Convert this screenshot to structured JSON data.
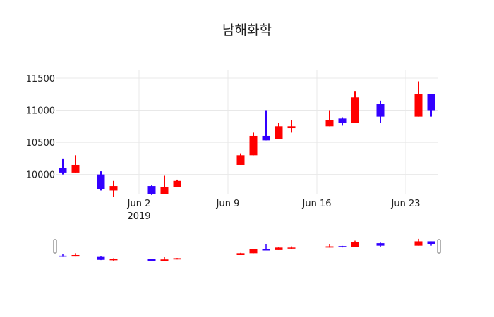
{
  "chart_data": {
    "type": "candlestick",
    "title": "남해화학",
    "xlabel": "",
    "ylabel": "",
    "grid": true,
    "range_slider": true,
    "ylim": [
      9700,
      11620
    ],
    "y_ticks": [
      10000,
      10500,
      11000,
      11500
    ],
    "x_ticks": [
      {
        "date": "2019-06-02",
        "label": "Jun 2",
        "sublabel": "2019"
      },
      {
        "date": "2019-06-09",
        "label": "Jun 9",
        "sublabel": ""
      },
      {
        "date": "2019-06-16",
        "label": "Jun 16",
        "sublabel": ""
      },
      {
        "date": "2019-06-23",
        "label": "Jun 23",
        "sublabel": ""
      }
    ],
    "increasing_color": "#ff0000",
    "decreasing_color": "#3300ff",
    "candles": [
      {
        "date": "2019-05-27",
        "open": 10100,
        "high": 10250,
        "low": 10000,
        "close": 10030
      },
      {
        "date": "2019-05-28",
        "open": 10030,
        "high": 10300,
        "low": 10030,
        "close": 10150
      },
      {
        "date": "2019-05-30",
        "open": 10000,
        "high": 10050,
        "low": 9750,
        "close": 9770
      },
      {
        "date": "2019-05-31",
        "open": 9750,
        "high": 9900,
        "low": 9650,
        "close": 9820
      },
      {
        "date": "2019-06-03",
        "open": 9820,
        "high": 9830,
        "low": 9680,
        "close": 9700
      },
      {
        "date": "2019-06-04",
        "open": 9700,
        "high": 9980,
        "low": 9700,
        "close": 9800
      },
      {
        "date": "2019-06-05",
        "open": 9800,
        "high": 9920,
        "low": 9800,
        "close": 9900
      },
      {
        "date": "2019-06-10",
        "open": 10150,
        "high": 10330,
        "low": 10150,
        "close": 10300
      },
      {
        "date": "2019-06-11",
        "open": 10300,
        "high": 10650,
        "low": 10300,
        "close": 10600
      },
      {
        "date": "2019-06-12",
        "open": 10600,
        "high": 11000,
        "low": 10530,
        "close": 10530
      },
      {
        "date": "2019-06-13",
        "open": 10550,
        "high": 10800,
        "low": 10550,
        "close": 10750
      },
      {
        "date": "2019-06-14",
        "open": 10720,
        "high": 10850,
        "low": 10650,
        "close": 10750
      },
      {
        "date": "2019-06-17",
        "open": 10750,
        "high": 11000,
        "low": 10750,
        "close": 10850
      },
      {
        "date": "2019-06-18",
        "open": 10870,
        "high": 10890,
        "low": 10760,
        "close": 10800
      },
      {
        "date": "2019-06-19",
        "open": 10800,
        "high": 11300,
        "low": 10800,
        "close": 11200
      },
      {
        "date": "2019-06-21",
        "open": 11100,
        "high": 11150,
        "low": 10800,
        "close": 10900
      },
      {
        "date": "2019-06-24",
        "open": 10900,
        "high": 11450,
        "low": 10900,
        "close": 11250
      },
      {
        "date": "2019-06-25",
        "open": 11250,
        "high": 11250,
        "low": 10900,
        "close": 11000
      }
    ]
  }
}
